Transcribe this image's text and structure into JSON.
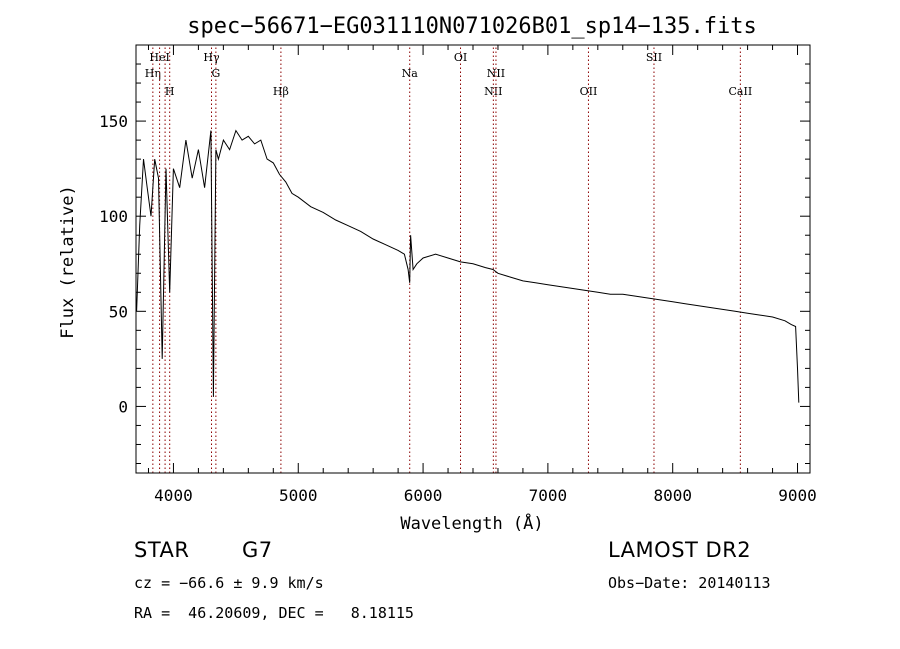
{
  "chart_data": {
    "type": "line",
    "title": "spec−56671−EG031110N071026B01_sp14−135.fits",
    "xlabel": "Wavelength (Å)",
    "ylabel": "Flux (relative)",
    "xlim": [
      3700,
      9100
    ],
    "ylim": [
      -35,
      190
    ],
    "xticks": [
      4000,
      5000,
      6000,
      7000,
      8000,
      9000
    ],
    "yticks": [
      0,
      50,
      100,
      150
    ],
    "grid": false,
    "series": [
      {
        "x": [
          3705,
          3730,
          3760,
          3790,
          3820,
          3850,
          3880,
          3910,
          3940,
          3970,
          4000,
          4050,
          4100,
          4150,
          4200,
          4250,
          4300,
          4320,
          4340,
          4360,
          4400,
          4450,
          4500,
          4550,
          4600,
          4650,
          4700,
          4750,
          4800,
          4850,
          4900,
          4950,
          5000,
          5100,
          5200,
          5300,
          5400,
          5500,
          5600,
          5700,
          5800,
          5850,
          5880,
          5893,
          5900,
          5920,
          5950,
          6000,
          6100,
          6200,
          6300,
          6400,
          6500,
          6560,
          6600,
          6700,
          6800,
          6900,
          7000,
          7100,
          7200,
          7300,
          7400,
          7500,
          7600,
          7700,
          7800,
          7900,
          8000,
          8100,
          8200,
          8300,
          8400,
          8500,
          8600,
          8700,
          8800,
          8900,
          8950,
          8985,
          9000,
          9010
        ],
        "y": [
          50,
          95,
          130,
          115,
          100,
          130,
          120,
          25,
          125,
          60,
          125,
          115,
          140,
          120,
          135,
          115,
          145,
          5,
          135,
          130,
          140,
          135,
          145,
          140,
          142,
          138,
          140,
          130,
          128,
          122,
          118,
          112,
          110,
          105,
          102,
          98,
          95,
          92,
          88,
          85,
          82,
          80,
          72,
          65,
          90,
          72,
          75,
          78,
          80,
          78,
          76,
          75,
          73,
          72,
          70,
          68,
          66,
          65,
          64,
          63,
          62,
          61,
          60,
          59,
          59,
          58,
          57,
          56,
          55,
          54,
          53,
          52,
          51,
          50,
          49,
          48,
          47,
          45,
          43,
          42,
          20,
          2
        ]
      }
    ],
    "lines": [
      {
        "label": "Hη",
        "x": 3835,
        "row": 2
      },
      {
        "label": "HeI",
        "x": 3889,
        "row": 1
      },
      {
        "label": "",
        "x": 3933,
        "row": 0
      },
      {
        "label": "H",
        "x": 3970,
        "row": 3
      },
      {
        "label": "Hγ",
        "x": 4305,
        "row": 1
      },
      {
        "label": "G",
        "x": 4340,
        "row": 2
      },
      {
        "label": "Hβ",
        "x": 4861,
        "row": 3
      },
      {
        "label": "Na",
        "x": 5893,
        "row": 2
      },
      {
        "label": "OI",
        "x": 6300,
        "row": 1
      },
      {
        "label": "NII",
        "x": 6563,
        "row": 3
      },
      {
        "label": "NII",
        "x": 6584,
        "row": 2
      },
      {
        "label": "OII",
        "x": 7325,
        "row": 3
      },
      {
        "label": "SII",
        "x": 7850,
        "row": 1
      },
      {
        "label": "CaII",
        "x": 8542,
        "row": 3
      }
    ]
  },
  "info": {
    "object_type": "STAR",
    "subclass": "G7",
    "survey": "LAMOST DR2",
    "cz": "cz = −66.6 ± 9.9 km/s",
    "obs_date": "Obs−Date: 20140113",
    "radec": "RA =  46.20609, DEC =   8.18115"
  },
  "colors": {
    "spectrum": "#000000",
    "line_marker": "#8b0000",
    "axes": "#000000"
  }
}
